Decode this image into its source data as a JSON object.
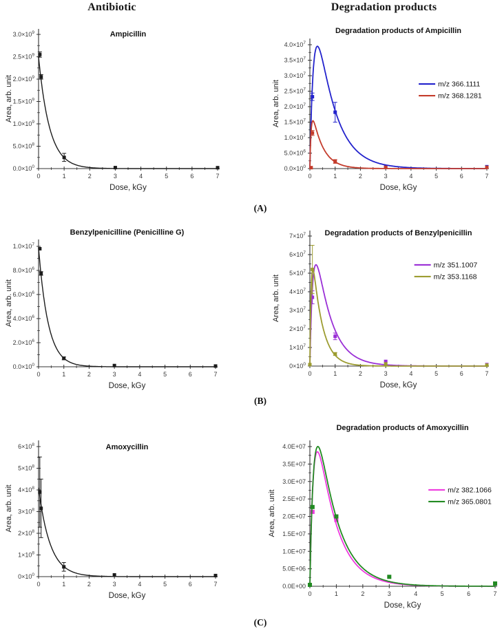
{
  "page": {
    "column_headers": [
      {
        "label": "Antibiotic"
      },
      {
        "label": "Degradation products"
      }
    ],
    "row_labels": [
      "(A)",
      "(B)",
      "(C)"
    ]
  },
  "chart_data": [
    {
      "type": "line",
      "panel": "A-left",
      "title": "Ampicillin",
      "xlabel": "Dose, kGy",
      "ylabel": "Area, arb. unit",
      "xlim": [
        0,
        7
      ],
      "ylim": [
        0,
        3000000000.0
      ],
      "xticks": [
        0,
        1,
        2,
        3,
        4,
        5,
        6,
        7
      ],
      "yticks": [
        0,
        500000000.0,
        1000000000.0,
        1500000000.0,
        2000000000.0,
        2500000000.0,
        3000000000.0
      ],
      "ytick_labels": [
        "0.0×10^0",
        "5.0×10^8",
        "1.0×10^9",
        "1.5×10^9",
        "2.0×10^9",
        "2.5×10^9",
        "3.0×10^9"
      ],
      "grid": false,
      "legend": null,
      "series": [
        {
          "name": null,
          "color": "#1c1c1c",
          "curve": {
            "kind": "decay",
            "A": 2500000000.0,
            "tau": 0.43
          },
          "points": [
            [
              0.05,
              2550000000.0,
              60000000.0
            ],
            [
              0.1,
              2050000000.0,
              50000000.0
            ],
            [
              1,
              250000000.0,
              90000000.0
            ],
            [
              3,
              22000000.0,
              0
            ],
            [
              7,
              20000000.0,
              0
            ]
          ]
        }
      ]
    },
    {
      "type": "line",
      "panel": "A-right",
      "title": "Degradation products of Ampicillin",
      "xlabel": "Dose, kGy",
      "ylabel": "Area, arb. unit",
      "xlim": [
        0,
        7
      ],
      "ylim": [
        0,
        40000000.0
      ],
      "xticks": [
        0,
        1,
        2,
        3,
        4,
        5,
        6,
        7
      ],
      "yticks": [
        0,
        5000000.0,
        10000000.0,
        15000000.0,
        20000000.0,
        25000000.0,
        30000000.0,
        35000000.0,
        40000000.0
      ],
      "ytick_labels": [
        "0.0×10^0",
        "5.0×10^6",
        "1.0×10^7",
        "1.5×10^7",
        "2.0×10^7",
        "2.5×10^7",
        "3.0×10^7",
        "3.5×10^7",
        "4.0×10^7"
      ],
      "grid": false,
      "legend": {
        "position": "upper-right"
      },
      "series": [
        {
          "name": "m/z 366.1111",
          "color": "#2222cc",
          "curve": {
            "kind": "peak",
            "A": 75400000.0,
            "tr": 0.15,
            "td": 0.72
          },
          "points": [
            [
              0.1,
              23200000.0,
              1200000.0
            ],
            [
              1,
              18200000.0,
              3200000.0
            ],
            [
              3,
              600000.0,
              0
            ],
            [
              7,
              600000.0,
              0
            ]
          ]
        },
        {
          "name": "m/z 368.1281",
          "color": "#c43c2c",
          "curve": {
            "kind": "peak",
            "A": 23400000.0,
            "tr": 0.05,
            "td": 0.42
          },
          "points": [
            [
              0.05,
              300000.0,
              0
            ],
            [
              0.1,
              11500000.0,
              800000.0
            ],
            [
              1,
              2300000.0,
              600000.0
            ],
            [
              3,
              400000.0,
              0
            ],
            [
              7,
              400000.0,
              0
            ]
          ]
        }
      ]
    },
    {
      "type": "line",
      "panel": "B-left",
      "title": "Benzylpenicilline (Penicilline G)",
      "xlabel": "Dose, kGy",
      "ylabel": "Area, arb. unit",
      "xlim": [
        0,
        7
      ],
      "ylim": [
        0,
        10000000.0
      ],
      "xticks": [
        0,
        1,
        2,
        3,
        4,
        5,
        6,
        7
      ],
      "yticks": [
        0,
        2000000.0,
        4000000.0,
        6000000.0,
        8000000.0,
        10000000.0
      ],
      "ytick_labels": [
        "0.0×10^0",
        "2.0×10^6",
        "4.0×10^6",
        "6.0×10^6",
        "8.0×10^6",
        "1.0×10^7"
      ],
      "grid": false,
      "legend": null,
      "series": [
        {
          "name": null,
          "color": "#1c1c1c",
          "curve": {
            "kind": "decay",
            "A": 9900000.0,
            "tau": 0.38
          },
          "points": [
            [
              0.05,
              9800000.0,
              0
            ],
            [
              0.1,
              7750000.0,
              150000.0
            ],
            [
              1,
              700000.0,
              120000.0
            ],
            [
              3,
              100000.0,
              0
            ],
            [
              7,
              60000.0,
              0
            ]
          ]
        }
      ]
    },
    {
      "type": "line",
      "panel": "B-right",
      "title": "Degradation products of Benzylpenicillin",
      "xlabel": "Dose, kGy",
      "ylabel": "Area, arb. unit",
      "xlim": [
        0,
        7
      ],
      "ylim": [
        0,
        70000000.0
      ],
      "xticks": [
        0,
        1,
        2,
        3,
        4,
        5,
        6,
        7
      ],
      "yticks": [
        0,
        10000000.0,
        20000000.0,
        30000000.0,
        40000000.0,
        50000000.0,
        60000000.0,
        70000000.0
      ],
      "ytick_labels": [
        "0×10^0",
        "1×10^7",
        "2×10^7",
        "3×10^7",
        "4×10^7",
        "5×10^7",
        "6×10^7",
        "7×10^7"
      ],
      "grid": false,
      "legend": {
        "position": "upper-right"
      },
      "series": [
        {
          "name": "m/z 351.1007",
          "color": "#9a2fd6",
          "curve": {
            "kind": "peak",
            "A": 102000000.0,
            "tr": 0.12,
            "td": 0.6
          },
          "points": [
            [
              0.1,
              37000000.0,
              3500000.0
            ],
            [
              1,
              16000000.0,
              1800000.0
            ],
            [
              3,
              2500000.0,
              0
            ],
            [
              7,
              800000.0,
              0
            ]
          ]
        },
        {
          "name": "m/z 353.1168",
          "color": "#9c9c30",
          "curve": {
            "kind": "peak",
            "A": 81000000.0,
            "tr": 0.05,
            "td": 0.38
          },
          "points": [
            [
              0,
              800000.0,
              0
            ],
            [
              0.1,
              52000000.0,
              13000000.0
            ],
            [
              1,
              6500000.0,
              800000.0
            ],
            [
              3,
              1200000.0,
              0
            ],
            [
              7,
              500000.0,
              0
            ]
          ]
        }
      ]
    },
    {
      "type": "line",
      "panel": "C-left",
      "title": "Amoxycillin",
      "xlabel": "Dose, kGy",
      "ylabel": "Area, arb. unit",
      "xlim": [
        0,
        7
      ],
      "ylim": [
        0,
        600000000.0
      ],
      "xticks": [
        0,
        1,
        2,
        3,
        4,
        5,
        6,
        7
      ],
      "yticks": [
        0,
        100000000.0,
        200000000.0,
        300000000.0,
        400000000.0,
        500000000.0,
        600000000.0
      ],
      "ytick_labels": [
        "0×10^0",
        "1×10^8",
        "2×10^8",
        "3×10^8",
        "4×10^8",
        "5×10^8",
        "6×10^8"
      ],
      "grid": false,
      "legend": null,
      "series": [
        {
          "name": null,
          "color": "#1c1c1c",
          "curve": {
            "kind": "decay",
            "A": 410000000.0,
            "tau": 0.46
          },
          "points": [
            [
              0.05,
              390000000.0,
              162000000.0
            ],
            [
              0.1,
              315000000.0,
              135000000.0
            ],
            [
              1,
              45000000.0,
              20000000.0
            ],
            [
              3,
              8000000.0,
              0
            ],
            [
              7,
              5000000.0,
              0
            ]
          ]
        }
      ]
    },
    {
      "type": "line",
      "panel": "C-right",
      "title": "Degradation products of Amoxycillin",
      "xlabel": "Dose, kGy",
      "ylabel": "Area, arb. unit",
      "xlim": [
        0,
        7
      ],
      "ylim": [
        0,
        40000000.0
      ],
      "xticks": [
        0,
        1,
        2,
        3,
        4,
        5,
        6,
        7
      ],
      "yticks": [
        0,
        5000000.0,
        10000000.0,
        15000000.0,
        20000000.0,
        25000000.0,
        30000000.0,
        35000000.0,
        40000000.0
      ],
      "ytick_labels": [
        "0.0E+00",
        "5.0E+06",
        "1.0E+07",
        "1.5E+07",
        "2.0E+07",
        "2.5E+07",
        "3.0E+07",
        "3.5E+07",
        "4.0E+07"
      ],
      "grid": false,
      "legend": {
        "position": "middle-right"
      },
      "series": [
        {
          "name": "m/z 382.1066",
          "color": "#ee3adf",
          "curve": {
            "kind": "peak",
            "A": 71000000.0,
            "tr": 0.14,
            "td": 0.72
          },
          "points": [
            [
              0.1,
              21300000.0,
              0
            ],
            [
              1,
              19000000.0,
              0
            ]
          ]
        },
        {
          "name": "m/z 365.0801",
          "color": "#218a21",
          "curve": {
            "kind": "peak",
            "A": 74800000.0,
            "tr": 0.15,
            "td": 0.75
          },
          "points": [
            [
              0,
              400000.0,
              0
            ],
            [
              0.1,
              22700000.0,
              0
            ],
            [
              1,
              20000000.0,
              0
            ],
            [
              3,
              2700000.0,
              0
            ],
            [
              7,
              800000.0,
              0
            ]
          ]
        }
      ]
    }
  ]
}
